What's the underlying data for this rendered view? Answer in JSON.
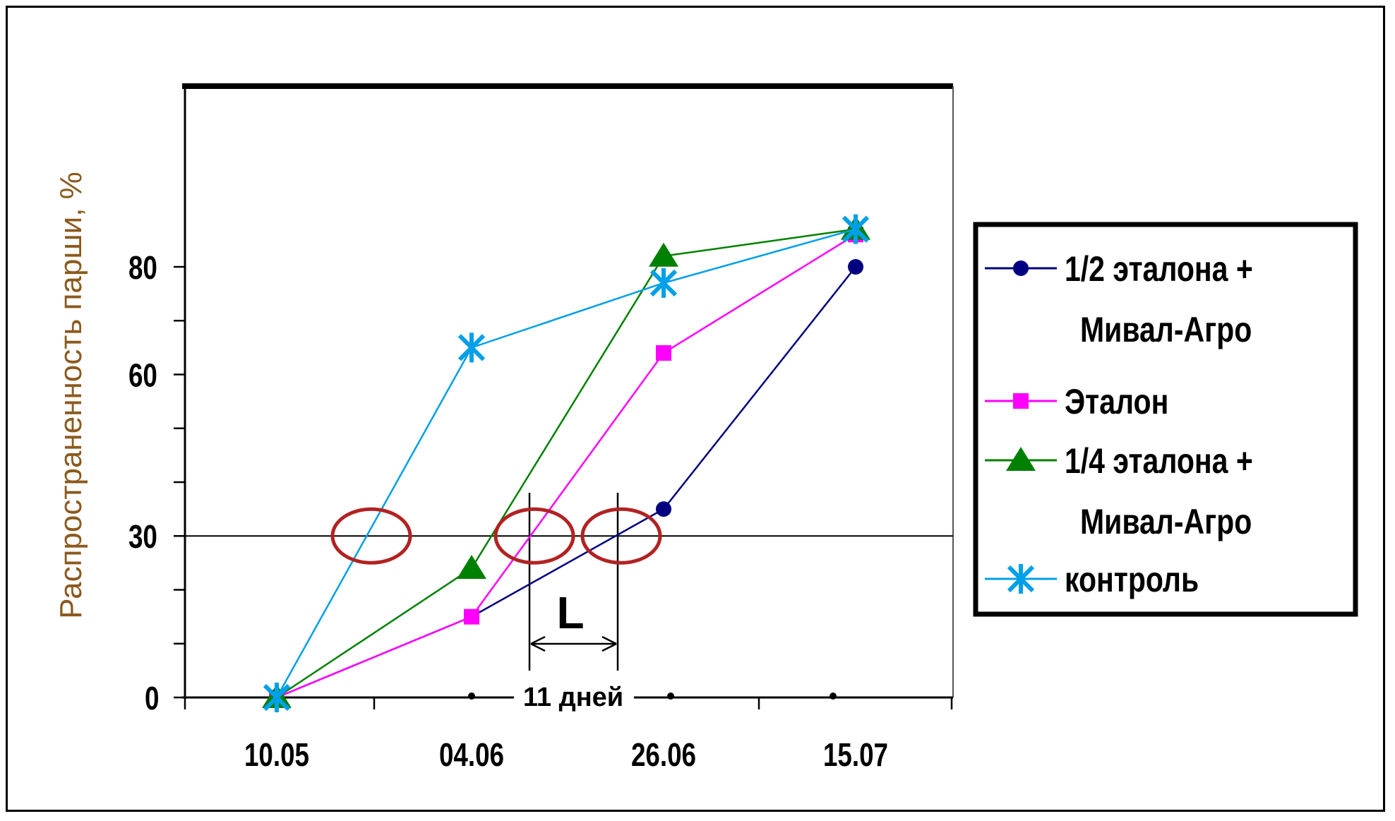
{
  "chart_data": {
    "type": "line",
    "title": "",
    "xlabel": "",
    "ylabel": "Распространенность парши, %",
    "categories": [
      "10.05",
      "04.06",
      "26.06",
      "15.07"
    ],
    "yticks": [
      0,
      30,
      60,
      80
    ],
    "ylim": [
      0,
      90
    ],
    "grid": false,
    "legend_position": "right",
    "reference_line_y": 30,
    "series": [
      {
        "name": "1/2 эталона + Мивал-Агро",
        "legend_lines": [
          "1/2 эталона +",
          "Мивал-Агро"
        ],
        "color": "#000080",
        "marker": "circle",
        "values": [
          0,
          15,
          35,
          80
        ]
      },
      {
        "name": "Эталон",
        "legend_lines": [
          "Эталон"
        ],
        "color": "#FF00FF",
        "marker": "square",
        "values": [
          0,
          15,
          64,
          86
        ]
      },
      {
        "name": "1/4 эталона + Мивал-Агро",
        "legend_lines": [
          "1/4 эталона +",
          "Мивал-Агро"
        ],
        "color": "#008000",
        "marker": "triangle",
        "values": [
          0,
          24,
          82,
          87
        ]
      },
      {
        "name": "контроль",
        "legend_lines": [
          "контроль"
        ],
        "color": "#00A0E8",
        "marker": "star",
        "values": [
          0,
          65,
          77,
          87
        ]
      }
    ],
    "annotations": {
      "interval_label": "L",
      "interval_days_label": "11 дней",
      "highlight_color": "#B22222"
    }
  }
}
